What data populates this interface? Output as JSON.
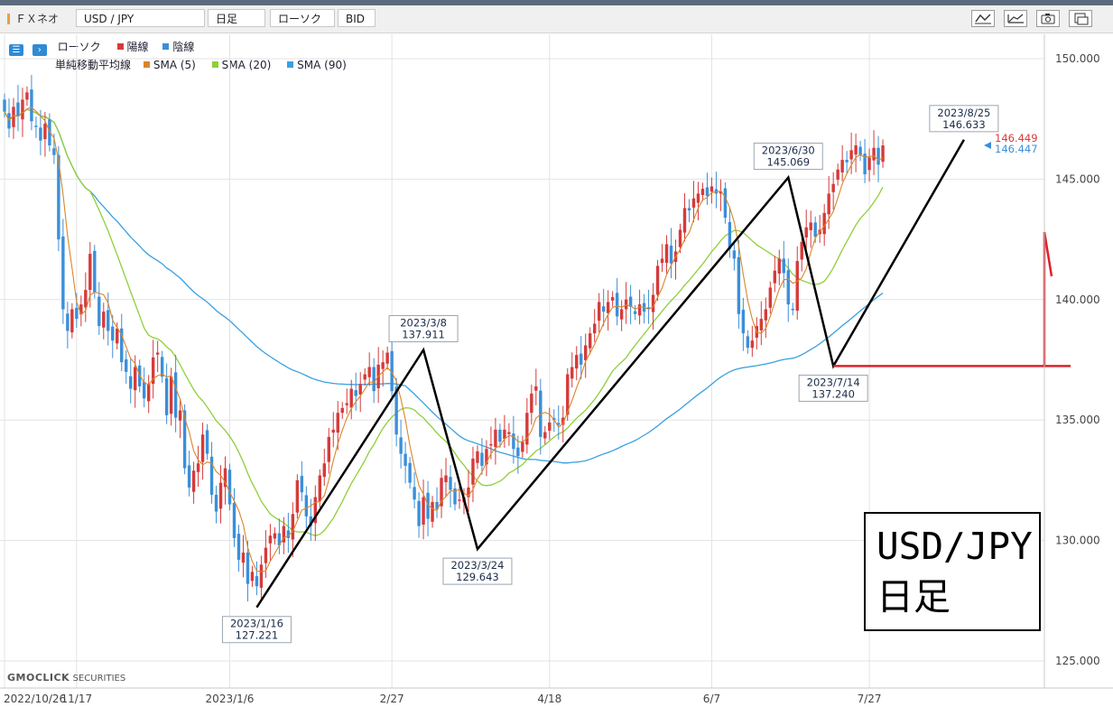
{
  "toolbar": {
    "app_name": "ＦＸネオ",
    "symbol": "USD / JPY",
    "timeframe": "日足",
    "chart_style": "ローソク",
    "price_type": "BID",
    "icons": [
      "line-drawing-icon",
      "area-chart-icon",
      "camera-icon",
      "window-icon"
    ]
  },
  "legend": {
    "candle_label": "ローソク",
    "up_label": "陽線",
    "down_label": "陰線",
    "ma_label": "単純移動平均線",
    "sma5_label": "SMA (5)",
    "sma20_label": "SMA (20)",
    "sma90_label": "SMA (90)"
  },
  "colors": {
    "up": "#d63a3a",
    "down": "#3b8fd9",
    "sma5": "#d9862a",
    "sma20": "#8fcf3a",
    "sma90": "#3aa0e0",
    "annotation": "#000000",
    "marker": "#e0202c"
  },
  "price_labels": {
    "bid": "146.449",
    "ask": "146.447"
  },
  "branding": {
    "logo": "GMOCLICK",
    "suffix": "SECURITIES"
  },
  "big_label": {
    "line1": "USD/JPY",
    "line2": "日足"
  },
  "chart_data": {
    "type": "candlestick",
    "y_ticks": [
      "150.000",
      "145.000",
      "140.000",
      "135.000",
      "130.000",
      "125.000"
    ],
    "ylim": [
      124,
      152
    ],
    "x_ticks": [
      {
        "label": "2022/10/26",
        "index": 0
      },
      {
        "label": "11/17",
        "index": 16
      },
      {
        "label": "2023/1/6",
        "index": 50
      },
      {
        "label": "2/27",
        "index": 86
      },
      {
        "label": "4/18",
        "index": 121
      },
      {
        "label": "6/7",
        "index": 157
      },
      {
        "label": "7/27",
        "index": 192
      }
    ],
    "closes": [
      147.8,
      147.1,
      148.0,
      147.6,
      148.3,
      148.6,
      147.4,
      147.2,
      146.6,
      147.3,
      146.4,
      146.0,
      142.5,
      139.6,
      138.7,
      139.6,
      139.2,
      139.8,
      140.4,
      141.9,
      140.3,
      138.9,
      139.5,
      138.7,
      138.3,
      138.8,
      137.4,
      137.0,
      136.3,
      137.2,
      136.4,
      135.9,
      136.5,
      137.6,
      137.8,
      136.8,
      135.2,
      136.8,
      135.1,
      135.4,
      133.0,
      132.2,
      132.9,
      133.2,
      134.4,
      133.6,
      131.9,
      131.2,
      132.4,
      133.0,
      131.5,
      130.1,
      129.2,
      129.5,
      128.2,
      128.7,
      128.1,
      129.0,
      129.7,
      130.2,
      130.3,
      129.8,
      130.6,
      130.1,
      131.1,
      132.5,
      132.0,
      131.0,
      130.6,
      131.8,
      132.7,
      133.2,
      134.3,
      134.6,
      135.3,
      135.5,
      135.7,
      136.3,
      136.0,
      136.5,
      136.9,
      137.2,
      136.2,
      137.3,
      137.4,
      137.8,
      136.2,
      134.4,
      133.6,
      133.1,
      132.4,
      131.7,
      130.6,
      131.8,
      130.9,
      131.6,
      131.3,
      132.6,
      132.7,
      132.1,
      131.5,
      131.7,
      131.8,
      132.2,
      133.4,
      133.7,
      133.1,
      133.8,
      134.0,
      134.6,
      134.1,
      134.6,
      134.5,
      133.8,
      133.5,
      134.1,
      135.3,
      136.1,
      136.4,
      134.3,
      134.5,
      134.9,
      135.0,
      134.8,
      135.1,
      136.9,
      137.2,
      137.7,
      137.3,
      138.1,
      138.6,
      139.0,
      139.9,
      139.5,
      139.9,
      140.1,
      139.3,
      139.6,
      140.0,
      139.7,
      139.4,
      139.8,
      139.5,
      139.6,
      140.2,
      141.4,
      141.7,
      142.3,
      141.5,
      142.0,
      142.9,
      143.8,
      143.7,
      144.2,
      144.4,
      144.6,
      144.3,
      144.7,
      144.4,
      144.5,
      143.4,
      142.1,
      141.7,
      139.4,
      138.6,
      138.0,
      138.3,
      138.9,
      139.2,
      139.6,
      140.5,
      141.2,
      141.7,
      141.1,
      139.8,
      139.6,
      141.6,
      142.4,
      143.0,
      143.2,
      142.6,
      142.9,
      143.6,
      144.4,
      144.8,
      145.4,
      145.8,
      145.7,
      146.2,
      146.4,
      146.0,
      145.2,
      145.9,
      146.3,
      145.6,
      146.4
    ],
    "annotations": [
      {
        "date": "2023/1/16",
        "value": "127.221",
        "index": 56,
        "price": 127.221,
        "pos": "below"
      },
      {
        "date": "2023/3/8",
        "value": "137.911",
        "index": 93,
        "price": 137.911,
        "pos": "above"
      },
      {
        "date": "2023/3/24",
        "value": "129.643",
        "index": 105,
        "price": 129.643,
        "pos": "below"
      },
      {
        "date": "2023/6/30",
        "value": "145.069",
        "index": 174,
        "price": 145.069,
        "pos": "above"
      },
      {
        "date": "2023/7/14",
        "value": "137.240",
        "index": 184,
        "price": 137.24,
        "pos": "below"
      },
      {
        "date": "2023/8/25",
        "value": "146.633",
        "index": 213,
        "price": 146.633,
        "pos": "above"
      }
    ],
    "horizontal_level": 137.24
  }
}
